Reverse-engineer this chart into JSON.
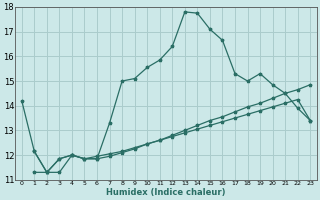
{
  "xlabel": "Humidex (Indice chaleur)",
  "xlim": [
    -0.5,
    23.5
  ],
  "ylim": [
    11,
    18
  ],
  "yticks": [
    11,
    12,
    13,
    14,
    15,
    16,
    17,
    18
  ],
  "xticks": [
    0,
    1,
    2,
    3,
    4,
    5,
    6,
    7,
    8,
    9,
    10,
    11,
    12,
    13,
    14,
    15,
    16,
    17,
    18,
    19,
    20,
    21,
    22,
    23
  ],
  "bg_color": "#cce8e8",
  "grid_color": "#aacccc",
  "line_color": "#2a6e65",
  "line1_x": [
    0,
    1,
    2,
    3,
    4,
    5,
    6,
    7,
    8,
    9,
    10,
    11,
    12,
    13,
    14,
    15,
    16,
    17,
    18,
    19,
    20,
    21,
    22,
    23
  ],
  "line1_y": [
    14.2,
    12.15,
    11.3,
    11.3,
    12.0,
    11.85,
    11.85,
    13.3,
    15.0,
    15.1,
    15.55,
    15.85,
    16.4,
    17.8,
    17.75,
    17.1,
    16.65,
    15.3,
    15.0,
    15.3,
    14.85,
    14.5,
    13.9,
    13.4
  ],
  "line2_x": [
    1,
    2,
    3,
    4,
    5,
    6,
    7,
    8,
    9,
    10,
    11,
    12,
    13,
    14,
    15,
    16,
    17,
    18,
    19,
    20,
    21,
    22,
    23
  ],
  "line2_y": [
    12.15,
    11.3,
    11.85,
    12.0,
    11.85,
    11.85,
    11.95,
    12.1,
    12.25,
    12.45,
    12.6,
    12.8,
    13.0,
    13.2,
    13.4,
    13.55,
    13.75,
    13.95,
    14.1,
    14.3,
    14.5,
    14.65,
    14.85
  ],
  "line3_x": [
    1,
    2,
    3,
    4,
    5,
    6,
    7,
    8,
    9,
    10,
    11,
    12,
    13,
    14,
    15,
    16,
    17,
    18,
    19,
    20,
    21,
    22,
    23
  ],
  "line3_y": [
    11.3,
    11.3,
    11.85,
    12.0,
    11.85,
    11.95,
    12.05,
    12.15,
    12.3,
    12.45,
    12.6,
    12.75,
    12.9,
    13.05,
    13.2,
    13.35,
    13.5,
    13.65,
    13.8,
    13.95,
    14.1,
    14.25,
    13.4
  ]
}
